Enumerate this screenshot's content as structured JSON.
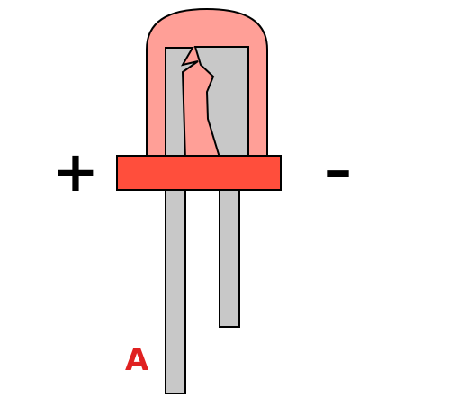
{
  "diagram": {
    "polarity_positive": "+",
    "polarity_negative": "–",
    "anode_label": "A"
  },
  "colors": {
    "lens_fill": "#ff9f97",
    "rim_fill": "#ff4e3c",
    "metal_fill": "#c8c8c8",
    "outline": "#000000",
    "anode_label": "#e02020"
  }
}
